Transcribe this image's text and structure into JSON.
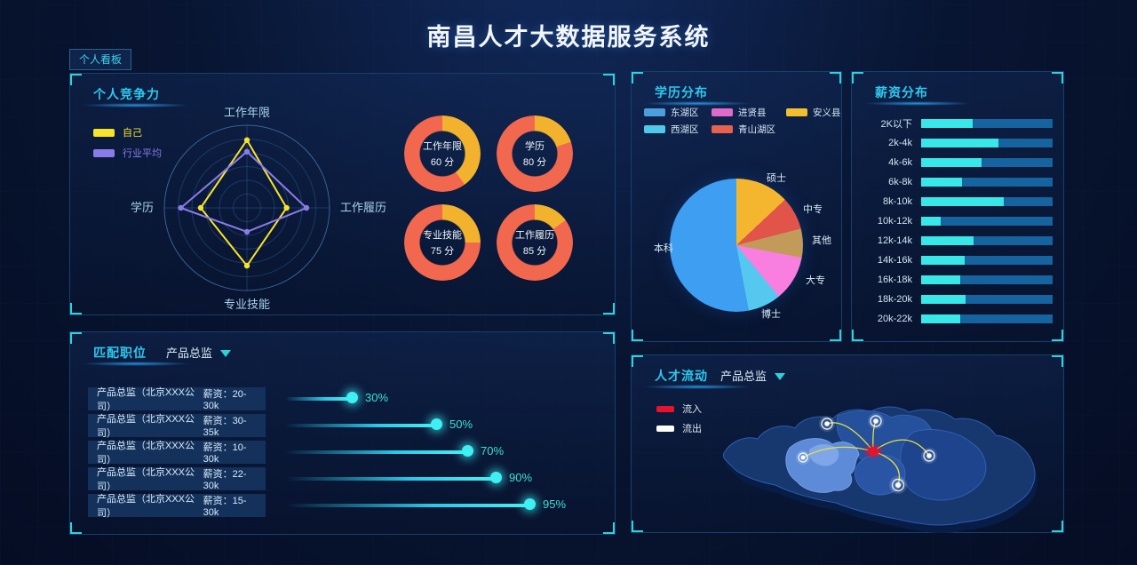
{
  "page": {
    "title": "南昌人才大数据服务系统",
    "tag": "个人看板"
  },
  "panels": {
    "competitiveness": {
      "title": "个人竞争力"
    },
    "jobs": {
      "title": "匹配职位",
      "dropdown": "产品总监",
      "salary_prefix": "薪资"
    },
    "education": {
      "title": "学历分布"
    },
    "salary": {
      "title": "薪资分布"
    },
    "flow": {
      "title": "人才流动",
      "dropdown": "产品总监",
      "legend": [
        {
          "label": "流入",
          "color": "#e8132b"
        },
        {
          "label": "流出",
          "color": "#ffffff"
        }
      ]
    }
  },
  "colors": {
    "accent_cyan": "#2fc8ee",
    "bar_fill": "#38e8e8",
    "bar_track": "#15639f",
    "donut_score": "#f2684e",
    "donut_rest": "#f3b22e",
    "self_yellow": "#f7e32b",
    "industry_purple": "#8a7ce8",
    "flow_line_yellow": "#e6e23c",
    "origin_red": "#e8132b"
  },
  "chart_data": [
    {
      "id": "radar-competitiveness",
      "type": "radar",
      "title": "个人竞争力",
      "axes": [
        "工作年限",
        "工作履历",
        "专业技能",
        "学历"
      ],
      "rmax": 100,
      "rings": 6,
      "legend_position": "top-left",
      "series": [
        {
          "name": "自己",
          "color": "#f7e32b",
          "values": [
            82,
            48,
            70,
            56
          ]
        },
        {
          "name": "行业平均",
          "color": "#8a7ce8",
          "values": [
            68,
            72,
            29,
            80
          ]
        }
      ]
    },
    {
      "id": "score-donuts",
      "type": "pie",
      "variant": "donut-gauge-grid",
      "colors": {
        "score": "#f2684e",
        "rest": "#f3b22e"
      },
      "items": [
        {
          "label": "工作年限",
          "score": 60,
          "suffix": "分"
        },
        {
          "label": "学历",
          "score": 80,
          "suffix": "分"
        },
        {
          "label": "专业技能",
          "score": 75,
          "suffix": "分"
        },
        {
          "label": "工作履历",
          "score": 85,
          "suffix": "分"
        }
      ]
    },
    {
      "id": "job-match",
      "type": "bar",
      "variant": "lollipop-horizontal",
      "title": "匹配职位",
      "xlim": [
        0,
        100
      ],
      "rows": [
        {
          "job": "产品总监（北京XXX公司）",
          "salary": "20-30k",
          "percent": 30
        },
        {
          "job": "产品总监（北京XXX公司）",
          "salary": "30-35k",
          "percent": 50
        },
        {
          "job": "产品总监（北京XXX公司）",
          "salary": "10-30k",
          "percent": 70
        },
        {
          "job": "产品总监（北京XXX公司）",
          "salary": "22-30k",
          "percent": 90
        },
        {
          "job": "产品总监（北京XXX公司）",
          "salary": "15-30k",
          "percent": 95
        }
      ]
    },
    {
      "id": "education-pie",
      "type": "pie",
      "title": "学历分布",
      "start_angle": "top",
      "direction": "clockwise",
      "slices": [
        {
          "label": "硕士",
          "value": 13,
          "color": "#f5b62f"
        },
        {
          "label": "中专",
          "value": 8,
          "color": "#e0544a"
        },
        {
          "label": "其他",
          "value": 7,
          "color": "#c29a5a"
        },
        {
          "label": "大专",
          "value": 11,
          "color": "#f87ee0"
        },
        {
          "label": "博士",
          "value": 8,
          "color": "#55c8f0"
        },
        {
          "label": "本科",
          "value": 53,
          "color": "#3d9ef2"
        }
      ],
      "legend": [
        {
          "label": "东湖区",
          "color": "#4a9fdc"
        },
        {
          "label": "进贤县",
          "color": "#e06ac8"
        },
        {
          "label": "安义县",
          "color": "#f2c02e"
        },
        {
          "label": "西湖区",
          "color": "#4fc8ec"
        },
        {
          "label": "青山湖区",
          "color": "#e8604e"
        }
      ]
    },
    {
      "id": "salary-distribution",
      "type": "bar",
      "variant": "horizontal",
      "title": "薪资分布",
      "xlim": [
        0,
        100
      ],
      "grid": false,
      "categories": [
        "2K以下",
        "2k-4k",
        "4k-6k",
        "6k-8k",
        "8k-10k",
        "10k-12k",
        "12k-14k",
        "14k-16k",
        "16k-18k",
        "18k-20k",
        "20k-22k"
      ],
      "values_pct": [
        39,
        59,
        46,
        31,
        63,
        15,
        40,
        33,
        30,
        34,
        30
      ],
      "colors": {
        "fill": "#38e8e8",
        "track": "#15639f"
      }
    }
  ]
}
